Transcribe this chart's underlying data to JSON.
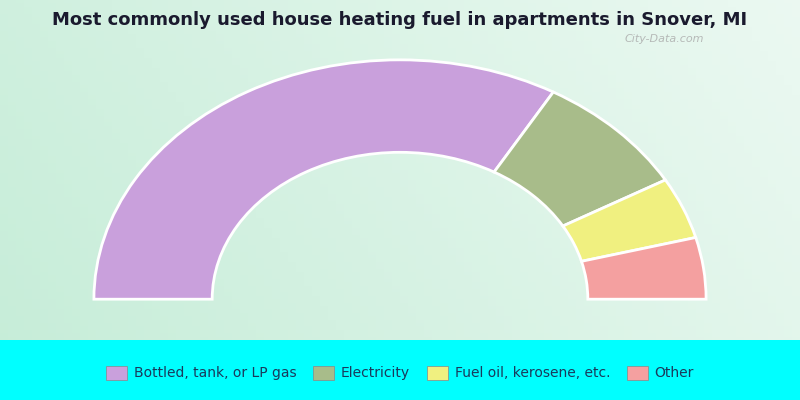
{
  "title": "Most commonly used house heating fuel in apartments in Snover, MI",
  "title_color": "#1a1a2e",
  "title_fontsize": 13,
  "segments": [
    {
      "label": "Bottled, tank, or LP gas",
      "value": 66.7,
      "color": "#c9a0dc"
    },
    {
      "label": "Electricity",
      "value": 16.7,
      "color": "#a8bc8a"
    },
    {
      "label": "Fuel oil, kerosene, etc.",
      "value": 8.3,
      "color": "#f0f080"
    },
    {
      "label": "Other",
      "value": 8.3,
      "color": "#f4a0a0"
    }
  ],
  "legend_colors": [
    "#d8a8e8",
    "#d8e8a8",
    "#f0f080",
    "#f4a0a0"
  ],
  "bg_chart_color": "#c8eedd",
  "bg_legend_color": "#00ffff",
  "border_color": "#00ffff",
  "watermark": "City-Data.com",
  "watermark_color": "#aaaaaa",
  "legend_fontsize": 10,
  "legend_text_color": "#1a3a5c"
}
